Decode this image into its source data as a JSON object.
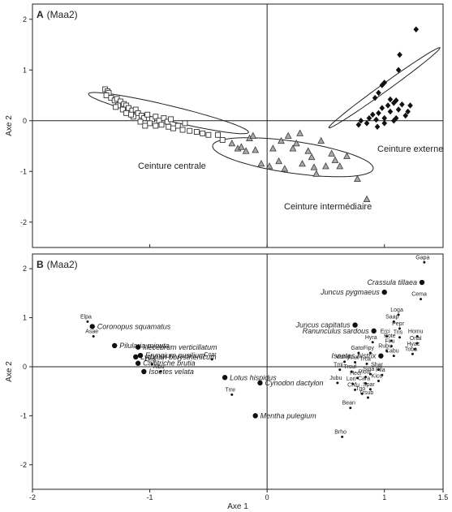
{
  "chart_data": [
    {
      "type": "scatter",
      "panel_letter": "A",
      "panel_title": "(Maa2)",
      "xlabel": "",
      "ylabel": "Axe 2",
      "xlim": [
        -2,
        1.5
      ],
      "ylim": [
        -2.5,
        2.3
      ],
      "yticks": [
        "-2",
        "-1",
        "0",
        "1",
        "2"
      ],
      "series": [
        {
          "name": "Ceinture centrale",
          "marker": "open-square",
          "points": [
            [
              -1.38,
              0.62
            ],
            [
              -1.36,
              0.58
            ],
            [
              -1.35,
              0.55
            ],
            [
              -1.37,
              0.5
            ],
            [
              -1.33,
              0.45
            ],
            [
              -1.3,
              0.4
            ],
            [
              -1.28,
              0.43
            ],
            [
              -1.25,
              0.38
            ],
            [
              -1.22,
              0.33
            ],
            [
              -1.2,
              0.3
            ],
            [
              -1.27,
              0.3
            ],
            [
              -1.23,
              0.22
            ],
            [
              -1.18,
              0.25
            ],
            [
              -1.15,
              0.2
            ],
            [
              -1.12,
              0.22
            ],
            [
              -1.1,
              0.15
            ],
            [
              -1.07,
              0.1
            ],
            [
              -1.05,
              0.05
            ],
            [
              -1.14,
              0.08
            ],
            [
              -1.02,
              0.12
            ],
            [
              -0.98,
              0.03
            ],
            [
              -0.95,
              0.08
            ],
            [
              -0.92,
              0.0
            ],
            [
              -0.88,
              0.05
            ],
            [
              -0.85,
              -0.02
            ],
            [
              -0.82,
              0.03
            ],
            [
              -1.2,
              0.15
            ],
            [
              -1.08,
              -0.02
            ],
            [
              -1.0,
              -0.05
            ],
            [
              -0.95,
              -0.1
            ],
            [
              -0.9,
              -0.08
            ],
            [
              -0.84,
              -0.12
            ],
            [
              -0.8,
              -0.15
            ],
            [
              -0.76,
              -0.1
            ],
            [
              -0.72,
              -0.18
            ],
            [
              -0.66,
              -0.2
            ],
            [
              -0.55,
              -0.25
            ],
            [
              -0.42,
              -0.28
            ],
            [
              -0.38,
              -0.38
            ],
            [
              -1.29,
              0.27
            ],
            [
              -1.16,
              0.12
            ],
            [
              -0.6,
              -0.22
            ],
            [
              -0.5,
              -0.28
            ],
            [
              -1.04,
              -0.1
            ],
            [
              -0.7,
              -0.05
            ]
          ]
        },
        {
          "name": "Ceinture intermédiaire",
          "marker": "grey-triangle",
          "points": [
            [
              -0.3,
              -0.45
            ],
            [
              -0.25,
              -0.55
            ],
            [
              -0.22,
              -0.52
            ],
            [
              -0.15,
              -0.35
            ],
            [
              -0.12,
              -0.3
            ],
            [
              -0.18,
              -0.6
            ],
            [
              -0.1,
              -0.58
            ],
            [
              -0.05,
              -0.85
            ],
            [
              0.02,
              -0.9
            ],
            [
              0.05,
              -0.55
            ],
            [
              0.1,
              -0.8
            ],
            [
              0.12,
              -0.4
            ],
            [
              0.15,
              -0.95
            ],
            [
              0.18,
              -0.3
            ],
            [
              0.22,
              -0.55
            ],
            [
              0.28,
              -0.25
            ],
            [
              0.3,
              -0.85
            ],
            [
              0.35,
              -0.6
            ],
            [
              0.38,
              -0.72
            ],
            [
              0.42,
              -1.05
            ],
            [
              0.46,
              -0.4
            ],
            [
              0.5,
              -0.9
            ],
            [
              0.55,
              -0.65
            ],
            [
              0.58,
              -0.78
            ],
            [
              0.62,
              -0.9
            ],
            [
              0.68,
              -0.7
            ],
            [
              0.77,
              -1.15
            ],
            [
              0.85,
              -1.55
            ],
            [
              0.25,
              -0.45
            ],
            [
              0.4,
              -0.92
            ]
          ]
        },
        {
          "name": "Ceinture externe",
          "marker": "black-diamond",
          "points": [
            [
              1.27,
              1.8
            ],
            [
              1.13,
              1.3
            ],
            [
              1.12,
              1.0
            ],
            [
              1.0,
              0.75
            ],
            [
              0.98,
              0.7
            ],
            [
              0.95,
              0.55
            ],
            [
              0.92,
              0.45
            ],
            [
              1.05,
              0.42
            ],
            [
              1.1,
              0.4
            ],
            [
              1.08,
              0.35
            ],
            [
              1.15,
              0.32
            ],
            [
              1.03,
              0.3
            ],
            [
              0.98,
              0.25
            ],
            [
              1.12,
              0.22
            ],
            [
              1.2,
              0.18
            ],
            [
              1.05,
              0.18
            ],
            [
              0.95,
              0.15
            ],
            [
              0.9,
              0.12
            ],
            [
              1.18,
              0.1
            ],
            [
              1.1,
              0.05
            ],
            [
              1.0,
              0.05
            ],
            [
              0.93,
              0.02
            ],
            [
              0.87,
              0.05
            ],
            [
              0.85,
              -0.05
            ],
            [
              1.08,
              0.0
            ],
            [
              1.22,
              0.3
            ],
            [
              0.8,
              0.0
            ],
            [
              0.78,
              -0.08
            ],
            [
              1.0,
              -0.05
            ],
            [
              0.94,
              -0.12
            ]
          ]
        }
      ],
      "group_labels": [
        "Ceinture centrale",
        "Ceinture intermédiaire",
        "Ceinture externe"
      ]
    },
    {
      "type": "scatter",
      "panel_letter": "B",
      "panel_title": "(Maa2)",
      "xlabel": "Axe 1",
      "ylabel": "Axe 2",
      "xlim": [
        -2,
        1.5
      ],
      "ylim": [
        -2.5,
        2.3
      ],
      "xticks": [
        "-2",
        "-1",
        "0",
        "1",
        "1.5"
      ],
      "yticks": [
        "-2",
        "-1",
        "0",
        "1",
        "2"
      ],
      "points": [
        {
          "label": "Gapa",
          "x": 1.34,
          "y": 2.13,
          "big": false,
          "italic": false
        },
        {
          "label": "Crassula tillaea",
          "x": 1.32,
          "y": 1.72,
          "big": true,
          "italic": true
        },
        {
          "label": "Juncus pygmaeus",
          "x": 1.0,
          "y": 1.52,
          "big": true,
          "italic": true
        },
        {
          "label": "Cema",
          "x": 1.31,
          "y": 1.38,
          "big": false,
          "italic": false
        },
        {
          "label": "Loga",
          "x": 1.12,
          "y": 1.06,
          "big": false,
          "italic": false
        },
        {
          "label": "Saap",
          "x": 1.08,
          "y": 0.92,
          "big": false,
          "italic": false
        },
        {
          "label": "Juncus capitatus",
          "x": 0.75,
          "y": 0.85,
          "big": true,
          "italic": true
        },
        {
          "label": "Ranunculus sardous",
          "x": 0.91,
          "y": 0.73,
          "big": true,
          "italic": true
        },
        {
          "label": "Pepr",
          "x": 1.13,
          "y": 0.78,
          "big": false,
          "italic": false
        },
        {
          "label": "Erci",
          "x": 1.02,
          "y": 0.62,
          "big": false,
          "italic": false
        },
        {
          "label": "Tris",
          "x": 1.13,
          "y": 0.6,
          "big": false,
          "italic": false
        },
        {
          "label": "Homu",
          "x": 1.28,
          "y": 0.62,
          "big": false,
          "italic": false
        },
        {
          "label": "Hyra",
          "x": 0.9,
          "y": 0.5,
          "big": false,
          "italic": false
        },
        {
          "label": "Pote",
          "x": 1.06,
          "y": 0.53,
          "big": false,
          "italic": false
        },
        {
          "label": "Onal",
          "x": 1.28,
          "y": 0.48,
          "big": false,
          "italic": false
        },
        {
          "label": "Firu",
          "x": 1.06,
          "y": 0.42,
          "big": false,
          "italic": false
        },
        {
          "label": "Hyac",
          "x": 1.26,
          "y": 0.36,
          "big": false,
          "italic": false
        },
        {
          "label": "Rubu",
          "x": 1.02,
          "y": 0.32,
          "big": false,
          "italic": false
        },
        {
          "label": "Toba",
          "x": 1.24,
          "y": 0.26,
          "big": false,
          "italic": false
        },
        {
          "label": "Gato",
          "x": 0.78,
          "y": 0.28,
          "big": false,
          "italic": false
        },
        {
          "label": "Fipy",
          "x": 0.88,
          "y": 0.28,
          "big": false,
          "italic": false
        },
        {
          "label": "Cabu",
          "x": 1.08,
          "y": 0.22,
          "big": false,
          "italic": false
        },
        {
          "label": "Isoetes histrix",
          "x": 0.97,
          "y": 0.22,
          "big": true,
          "italic": true
        },
        {
          "label": "Vumy",
          "x": 0.66,
          "y": 0.1,
          "big": false,
          "italic": false
        },
        {
          "label": "Anar",
          "x": 0.75,
          "y": 0.09,
          "big": false,
          "italic": false
        },
        {
          "label": "Trca",
          "x": 0.85,
          "y": 0.06,
          "big": false,
          "italic": false
        },
        {
          "label": "Tmi",
          "x": 0.62,
          "y": -0.06,
          "big": false,
          "italic": false
        },
        {
          "label": "Trsuf",
          "x": 0.72,
          "y": -0.1,
          "big": false,
          "italic": false
        },
        {
          "label": "Shar",
          "x": 0.95,
          "y": -0.06,
          "big": false,
          "italic": false
        },
        {
          "label": "Siga",
          "x": 0.88,
          "y": -0.15,
          "big": false,
          "italic": false
        },
        {
          "label": "Plla",
          "x": 0.98,
          "y": -0.17,
          "big": false,
          "italic": false
        },
        {
          "label": "Hecr",
          "x": 0.77,
          "y": -0.23,
          "big": false,
          "italic": false
        },
        {
          "label": "Ploo",
          "x": 0.84,
          "y": -0.21,
          "big": false,
          "italic": false
        },
        {
          "label": "Kico",
          "x": 0.95,
          "y": -0.29,
          "big": false,
          "italic": false
        },
        {
          "label": "Jubu",
          "x": 0.6,
          "y": -0.33,
          "big": false,
          "italic": false
        },
        {
          "label": "Lori",
          "x": 0.73,
          "y": -0.35,
          "big": false,
          "italic": false
        },
        {
          "label": "Cara",
          "x": 0.84,
          "y": -0.34,
          "big": false,
          "italic": false
        },
        {
          "label": "Chfu",
          "x": 0.75,
          "y": -0.47,
          "big": false,
          "italic": false
        },
        {
          "label": "Spar",
          "x": 0.88,
          "y": -0.46,
          "big": false,
          "italic": false
        },
        {
          "label": "Trio",
          "x": 0.81,
          "y": -0.55,
          "big": false,
          "italic": false
        },
        {
          "label": "Trsub",
          "x": 0.86,
          "y": -0.63,
          "big": false,
          "italic": false
        },
        {
          "label": "Bean",
          "x": 0.71,
          "y": -0.84,
          "big": false,
          "italic": false
        },
        {
          "label": "Brho",
          "x": 0.64,
          "y": -1.43,
          "big": false,
          "italic": false
        },
        {
          "label": "Elpa",
          "x": -1.53,
          "y": 0.92,
          "big": false,
          "italic": false
        },
        {
          "label": "Coronopus squamatus",
          "x": -1.49,
          "y": 0.82,
          "big": true,
          "italic": true
        },
        {
          "label": "Asae",
          "x": -1.48,
          "y": 0.62,
          "big": false,
          "italic": false
        },
        {
          "label": "Pilularia minuta",
          "x": -1.3,
          "y": 0.43,
          "big": true,
          "italic": true
        },
        {
          "label": "Illecebrum verticillatum",
          "x": -1.1,
          "y": 0.4,
          "big": true,
          "italic": true
        },
        {
          "label": "Lythrum borysthenicum",
          "x": -1.12,
          "y": 0.2,
          "big": true,
          "italic": true
        },
        {
          "label": "Eryngium pusilium",
          "x": -1.08,
          "y": 0.23,
          "big": true,
          "italic": true
        },
        {
          "label": "Callitriche brutia",
          "x": -1.1,
          "y": 0.07,
          "big": true,
          "italic": true
        },
        {
          "label": "Lyhy",
          "x": -0.98,
          "y": 0.05,
          "big": false,
          "italic": false
        },
        {
          "label": "Isoetes velata",
          "x": -1.05,
          "y": -0.1,
          "big": true,
          "italic": true
        },
        {
          "label": "Albu",
          "x": -0.91,
          "y": -0.1,
          "big": false,
          "italic": false
        },
        {
          "label": "Coar",
          "x": -0.47,
          "y": 0.15,
          "big": false,
          "italic": false
        },
        {
          "label": "Lotus hispidus",
          "x": -0.36,
          "y": -0.22,
          "big": true,
          "italic": true
        },
        {
          "label": "Cynodon dactylon",
          "x": -0.06,
          "y": -0.33,
          "big": true,
          "italic": true
        },
        {
          "label": "Trre",
          "x": -0.3,
          "y": -0.57,
          "big": false,
          "italic": false
        },
        {
          "label": "Mentha pulegium",
          "x": -0.1,
          "y": -1.0,
          "big": true,
          "italic": true
        }
      ]
    }
  ]
}
